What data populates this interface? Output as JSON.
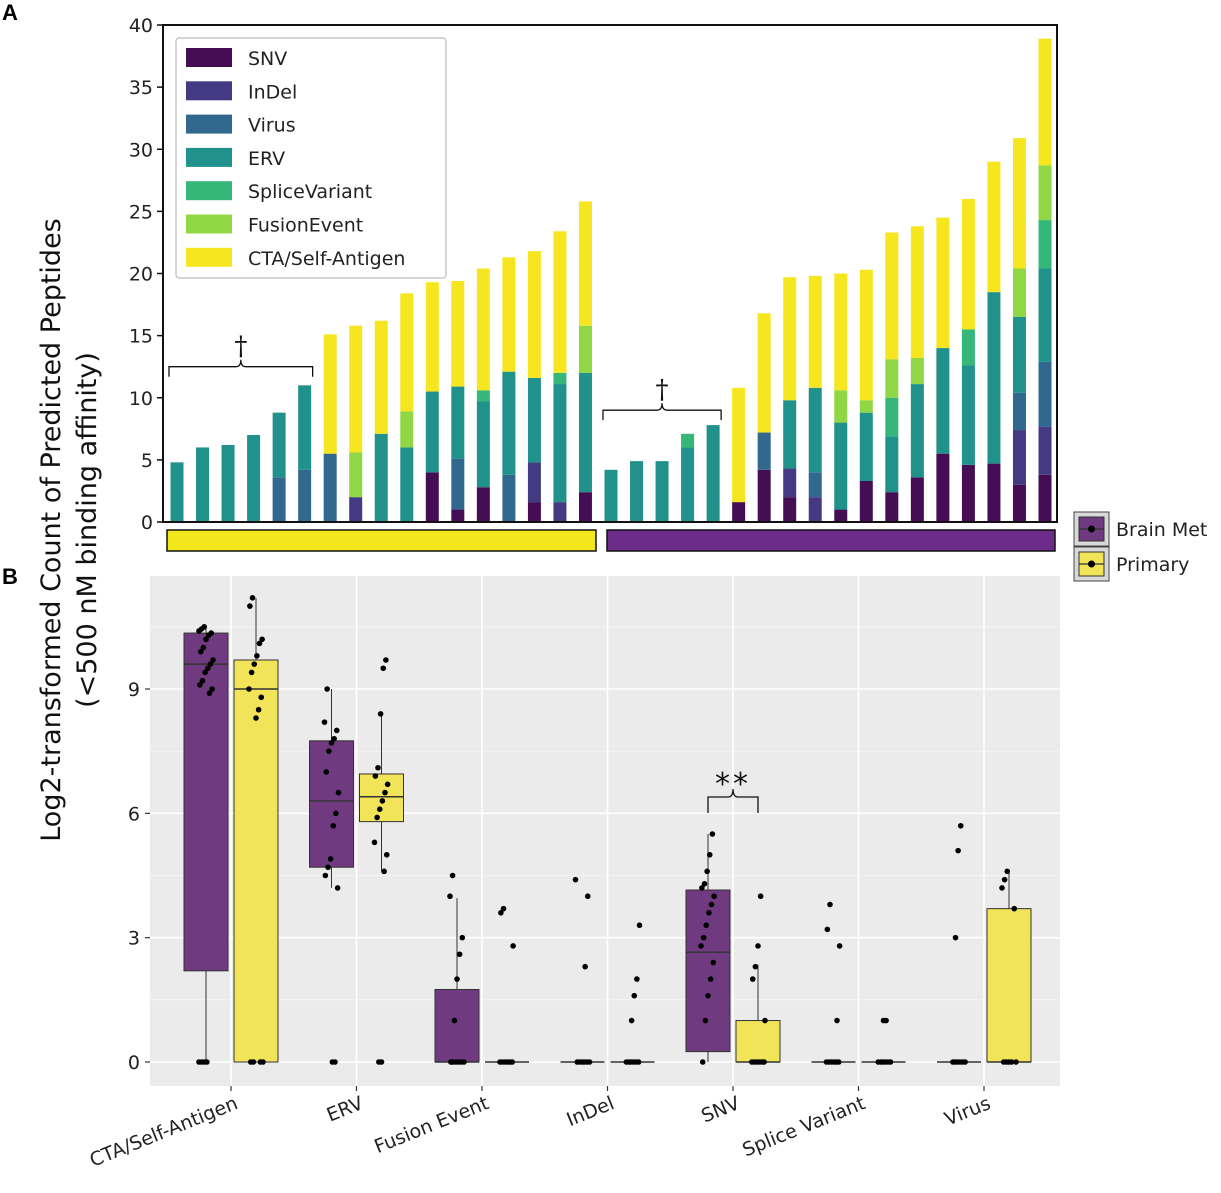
{
  "panel_labels": {
    "a": "A",
    "b": "B"
  },
  "y_axis_label_line1": "Log2-transformed Count of Predicted Peptides",
  "y_axis_label_line2": "(<500 nM binding affinity)",
  "colors": {
    "SNV": "#440d54",
    "InDel": "#443a83",
    "Virus": "#31688e",
    "ERV": "#21918c",
    "SpliceVariant": "#35b779",
    "FusionEvent": "#8fd744",
    "CTA": "#f6e620",
    "primary_bar": "#f2e61d",
    "brainmet_bar": "#6e2c8a",
    "primary_box": "#f2e459",
    "brainmet_box": "#6f3a7f",
    "panel_b_bg": "#ebebeb"
  },
  "chart_data": [
    {
      "type": "stacked-bar",
      "ylim": [
        0,
        40
      ],
      "yticks": [
        0,
        5,
        10,
        15,
        20,
        25,
        30,
        35,
        40
      ],
      "legend": [
        "SNV",
        "InDel",
        "Virus",
        "ERV",
        "SpliceVariant",
        "FusionEvent",
        "CTA/Self-Antigen"
      ],
      "stack_keys": [
        "SNV",
        "InDel",
        "Virus",
        "ERV",
        "SpliceVariant",
        "FusionEvent",
        "CTA"
      ],
      "group_labels": [
        "Primary",
        "Brain Met"
      ],
      "dagger": "†",
      "bars": [
        {
          "group": "Primary",
          "SNV": 0,
          "InDel": 0,
          "Virus": 0,
          "ERV": 4.8,
          "SpliceVariant": 0,
          "FusionEvent": 0,
          "CTA": 0
        },
        {
          "group": "Primary",
          "SNV": 0,
          "InDel": 0,
          "Virus": 0,
          "ERV": 6.0,
          "SpliceVariant": 0,
          "FusionEvent": 0,
          "CTA": 0
        },
        {
          "group": "Primary",
          "SNV": 0,
          "InDel": 0,
          "Virus": 0,
          "ERV": 6.2,
          "SpliceVariant": 0,
          "FusionEvent": 0,
          "CTA": 0
        },
        {
          "group": "Primary",
          "SNV": 0,
          "InDel": 0,
          "Virus": 0,
          "ERV": 7.0,
          "SpliceVariant": 0,
          "FusionEvent": 0,
          "CTA": 0
        },
        {
          "group": "Primary",
          "SNV": 0,
          "InDel": 0,
          "Virus": 3.6,
          "ERV": 5.2,
          "SpliceVariant": 0,
          "FusionEvent": 0,
          "CTA": 0
        },
        {
          "group": "Primary",
          "SNV": 0,
          "InDel": 0,
          "Virus": 4.2,
          "ERV": 6.8,
          "SpliceVariant": 0,
          "FusionEvent": 0,
          "CTA": 0
        },
        {
          "group": "Primary",
          "SNV": 0,
          "InDel": 0,
          "Virus": 5.5,
          "ERV": 0,
          "SpliceVariant": 0,
          "FusionEvent": 0,
          "CTA": 9.6
        },
        {
          "group": "Primary",
          "SNV": 0,
          "InDel": 2.0,
          "Virus": 0,
          "ERV": 0,
          "SpliceVariant": 0,
          "FusionEvent": 3.6,
          "CTA": 10.2
        },
        {
          "group": "Primary",
          "SNV": 0,
          "InDel": 0,
          "Virus": 0,
          "ERV": 7.1,
          "SpliceVariant": 0,
          "FusionEvent": 0,
          "CTA": 9.1
        },
        {
          "group": "Primary",
          "SNV": 0,
          "InDel": 0,
          "Virus": 0,
          "ERV": 6.0,
          "SpliceVariant": 0,
          "FusionEvent": 2.9,
          "CTA": 9.5
        },
        {
          "group": "Primary",
          "SNV": 4.0,
          "InDel": 0,
          "Virus": 0,
          "ERV": 6.5,
          "SpliceVariant": 0,
          "FusionEvent": 0,
          "CTA": 8.8
        },
        {
          "group": "Primary",
          "SNV": 1.0,
          "InDel": 0,
          "Virus": 4.1,
          "ERV": 5.8,
          "SpliceVariant": 0,
          "FusionEvent": 0,
          "CTA": 8.5
        },
        {
          "group": "Primary",
          "SNV": 2.8,
          "InDel": 0,
          "Virus": 0,
          "ERV": 6.9,
          "SpliceVariant": 0.9,
          "FusionEvent": 0,
          "CTA": 9.8
        },
        {
          "group": "Primary",
          "SNV": 0,
          "InDel": 0,
          "Virus": 3.8,
          "ERV": 8.3,
          "SpliceVariant": 0,
          "FusionEvent": 0,
          "CTA": 9.2
        },
        {
          "group": "Primary",
          "SNV": 1.6,
          "InDel": 3.2,
          "Virus": 0,
          "ERV": 6.8,
          "SpliceVariant": 0,
          "FusionEvent": 0,
          "CTA": 10.2
        },
        {
          "group": "Primary",
          "SNV": 0,
          "InDel": 1.6,
          "Virus": 0,
          "ERV": 9.5,
          "SpliceVariant": 0.9,
          "FusionEvent": 0,
          "CTA": 11.4
        },
        {
          "group": "Primary",
          "SNV": 2.4,
          "InDel": 0,
          "Virus": 0,
          "ERV": 9.6,
          "SpliceVariant": 0,
          "FusionEvent": 3.8,
          "CTA": 10.0
        },
        {
          "group": "Brain Met",
          "SNV": 0,
          "InDel": 0,
          "Virus": 0,
          "ERV": 4.2,
          "SpliceVariant": 0,
          "FusionEvent": 0,
          "CTA": 0
        },
        {
          "group": "Brain Met",
          "SNV": 0,
          "InDel": 0,
          "Virus": 0,
          "ERV": 4.9,
          "SpliceVariant": 0,
          "FusionEvent": 0,
          "CTA": 0
        },
        {
          "group": "Brain Met",
          "SNV": 0,
          "InDel": 0,
          "Virus": 0,
          "ERV": 4.9,
          "SpliceVariant": 0,
          "FusionEvent": 0,
          "CTA": 0
        },
        {
          "group": "Brain Met",
          "SNV": 0,
          "InDel": 0,
          "Virus": 0,
          "ERV": 6.0,
          "SpliceVariant": 1.1,
          "FusionEvent": 0,
          "CTA": 0
        },
        {
          "group": "Brain Met",
          "SNV": 0,
          "InDel": 0,
          "Virus": 0,
          "ERV": 7.8,
          "SpliceVariant": 0,
          "FusionEvent": 0,
          "CTA": 0
        },
        {
          "group": "Brain Met",
          "SNV": 1.6,
          "InDel": 0,
          "Virus": 0,
          "ERV": 0,
          "SpliceVariant": 0,
          "FusionEvent": 0,
          "CTA": 9.2
        },
        {
          "group": "Brain Met",
          "SNV": 4.2,
          "InDel": 0,
          "Virus": 3.0,
          "ERV": 0,
          "SpliceVariant": 0,
          "FusionEvent": 0,
          "CTA": 9.6
        },
        {
          "group": "Brain Met",
          "SNV": 2.0,
          "InDel": 2.3,
          "Virus": 0,
          "ERV": 5.5,
          "SpliceVariant": 0,
          "FusionEvent": 0,
          "CTA": 9.9
        },
        {
          "group": "Brain Met",
          "SNV": 0,
          "InDel": 2.0,
          "Virus": 2.0,
          "ERV": 6.8,
          "SpliceVariant": 0,
          "FusionEvent": 0,
          "CTA": 9.0
        },
        {
          "group": "Brain Met",
          "SNV": 1.0,
          "InDel": 0,
          "Virus": 0,
          "ERV": 7.0,
          "SpliceVariant": 0,
          "FusionEvent": 2.6,
          "CTA": 9.4
        },
        {
          "group": "Brain Met",
          "SNV": 3.3,
          "InDel": 0,
          "Virus": 0,
          "ERV": 5.5,
          "SpliceVariant": 0,
          "FusionEvent": 1.0,
          "CTA": 10.5
        },
        {
          "group": "Brain Met",
          "SNV": 2.4,
          "InDel": 0,
          "Virus": 0,
          "ERV": 4.5,
          "SpliceVariant": 3.1,
          "FusionEvent": 3.1,
          "CTA": 10.2
        },
        {
          "group": "Brain Met",
          "SNV": 3.6,
          "InDel": 0,
          "Virus": 0,
          "ERV": 7.5,
          "SpliceVariant": 0,
          "FusionEvent": 2.1,
          "CTA": 10.6
        },
        {
          "group": "Brain Met",
          "SNV": 5.5,
          "InDel": 0,
          "Virus": 0,
          "ERV": 8.5,
          "SpliceVariant": 0,
          "FusionEvent": 0,
          "CTA": 10.5
        },
        {
          "group": "Brain Met",
          "SNV": 4.6,
          "InDel": 0,
          "Virus": 0,
          "ERV": 8.0,
          "SpliceVariant": 2.9,
          "FusionEvent": 0,
          "CTA": 10.5
        },
        {
          "group": "Brain Met",
          "SNV": 4.7,
          "InDel": 0,
          "Virus": 0,
          "ERV": 13.8,
          "SpliceVariant": 0,
          "FusionEvent": 0,
          "CTA": 10.5
        },
        {
          "group": "Brain Met",
          "SNV": 3.0,
          "InDel": 4.4,
          "Virus": 3.0,
          "ERV": 6.1,
          "SpliceVariant": 0,
          "FusionEvent": 3.9,
          "CTA": 10.5
        },
        {
          "group": "Brain Met",
          "SNV": 3.8,
          "InDel": 3.9,
          "Virus": 5.2,
          "ERV": 7.5,
          "SpliceVariant": 3.9,
          "FusionEvent": 4.4,
          "CTA": 10.2
        }
      ],
      "dagger_brackets": [
        {
          "from_bar": 0,
          "to_bar": 5,
          "y": 12.5,
          "label": "†"
        },
        {
          "from_bar": 17,
          "to_bar": 21,
          "y": 9.0,
          "label": "†"
        }
      ]
    },
    {
      "type": "boxplot",
      "ylim": [
        -0.3,
        11.5
      ],
      "yticks": [
        0,
        3,
        6,
        9
      ],
      "categories": [
        "CTA/Self-Antigen",
        "ERV",
        "Fusion Event",
        "InDel",
        "SNV",
        "Splice Variant",
        "Virus"
      ],
      "legend": [
        "Brain Met",
        "Primary"
      ],
      "significance": {
        "category": "SNV",
        "label": "**"
      },
      "groups": [
        {
          "category": "CTA/Self-Antigen",
          "series": "Brain Met",
          "q1": 2.2,
          "median": 9.6,
          "q3": 10.35,
          "lo": 0,
          "hi": 10.5,
          "points": [
            0,
            0,
            0,
            0,
            8.9,
            9.0,
            9.1,
            9.2,
            9.4,
            9.5,
            9.6,
            9.7,
            9.9,
            10.0,
            10.2,
            10.3,
            10.35,
            10.4,
            10.45,
            10.5
          ]
        },
        {
          "category": "CTA/Self-Antigen",
          "series": "Primary",
          "q1": 0,
          "median": 9.0,
          "q3": 9.7,
          "lo": 0,
          "hi": 11.2,
          "points": [
            0,
            0,
            0,
            0,
            8.3,
            8.5,
            8.8,
            9.0,
            9.4,
            9.6,
            9.8,
            10.1,
            10.2,
            11.0,
            11.2
          ]
        },
        {
          "category": "ERV",
          "series": "Brain Met",
          "q1": 4.7,
          "median": 6.3,
          "q3": 7.75,
          "lo": 4.2,
          "hi": 9.0,
          "points": [
            0,
            0,
            4.2,
            4.5,
            4.7,
            4.9,
            5.7,
            6.0,
            6.5,
            7.0,
            7.5,
            7.7,
            7.8,
            8.0,
            8.2,
            9.0
          ]
        },
        {
          "category": "ERV",
          "series": "Primary",
          "q1": 5.8,
          "median": 6.4,
          "q3": 6.95,
          "lo": 4.6,
          "hi": 8.4,
          "points": [
            0,
            0,
            4.6,
            5.0,
            5.3,
            5.9,
            6.1,
            6.3,
            6.5,
            6.7,
            6.9,
            7.1,
            8.4,
            9.5,
            9.7
          ]
        },
        {
          "category": "Fusion Event",
          "series": "Brain Met",
          "q1": 0,
          "median": 0,
          "q3": 1.75,
          "lo": 0,
          "hi": 3.95,
          "points": [
            0,
            0,
            0,
            0,
            0,
            0,
            0,
            1.0,
            2.0,
            2.6,
            3.0,
            4.0,
            4.5
          ]
        },
        {
          "category": "Fusion Event",
          "series": "Primary",
          "q1": 0,
          "median": 0,
          "q3": 0,
          "lo": 0,
          "hi": 0,
          "points": [
            0,
            0,
            0,
            0,
            0,
            0,
            2.8,
            3.6,
            3.7
          ]
        },
        {
          "category": "InDel",
          "series": "Brain Met",
          "q1": 0,
          "median": 0,
          "q3": 0,
          "lo": 0,
          "hi": 0,
          "points": [
            0,
            0,
            0,
            0,
            0,
            0,
            2.3,
            4.0,
            4.4
          ]
        },
        {
          "category": "InDel",
          "series": "Primary",
          "q1": 0,
          "median": 0,
          "q3": 0,
          "lo": 0,
          "hi": 0,
          "points": [
            0,
            0,
            0,
            0,
            0,
            0,
            1.0,
            1.6,
            2.0,
            3.3
          ]
        },
        {
          "category": "SNV",
          "series": "Brain Met",
          "q1": 0.25,
          "median": 2.65,
          "q3": 4.15,
          "lo": 0,
          "hi": 5.5,
          "points": [
            0,
            1.0,
            1.6,
            2.0,
            2.4,
            2.8,
            3.0,
            3.3,
            3.6,
            3.8,
            4.0,
            4.2,
            4.3,
            4.6,
            5.0,
            5.5
          ]
        },
        {
          "category": "SNV",
          "series": "Primary",
          "q1": 0,
          "median": 0,
          "q3": 1.0,
          "lo": 0,
          "hi": 2.35,
          "points": [
            0,
            0,
            0,
            0,
            0,
            0,
            1.0,
            2.0,
            2.3,
            2.8,
            4.0
          ]
        },
        {
          "category": "Splice Variant",
          "series": "Brain Met",
          "q1": 0,
          "median": 0,
          "q3": 0,
          "lo": 0,
          "hi": 0,
          "points": [
            0,
            0,
            0,
            0,
            0,
            0,
            1.0,
            2.8,
            3.2,
            3.8
          ]
        },
        {
          "category": "Splice Variant",
          "series": "Primary",
          "q1": 0,
          "median": 0,
          "q3": 0,
          "lo": 0,
          "hi": 0,
          "points": [
            0,
            0,
            0,
            0,
            0,
            0,
            1.0,
            1.0
          ]
        },
        {
          "category": "Virus",
          "series": "Brain Met",
          "q1": 0,
          "median": 0,
          "q3": 0,
          "lo": 0,
          "hi": 0,
          "points": [
            0,
            0,
            0,
            0,
            0,
            0,
            3.0,
            5.1,
            5.7
          ]
        },
        {
          "category": "Virus",
          "series": "Primary",
          "q1": 0,
          "median": 0,
          "q3": 3.7,
          "lo": 0,
          "hi": 4.6,
          "points": [
            0,
            0,
            0,
            0,
            0,
            3.7,
            4.2,
            4.4,
            4.6
          ]
        }
      ]
    }
  ]
}
